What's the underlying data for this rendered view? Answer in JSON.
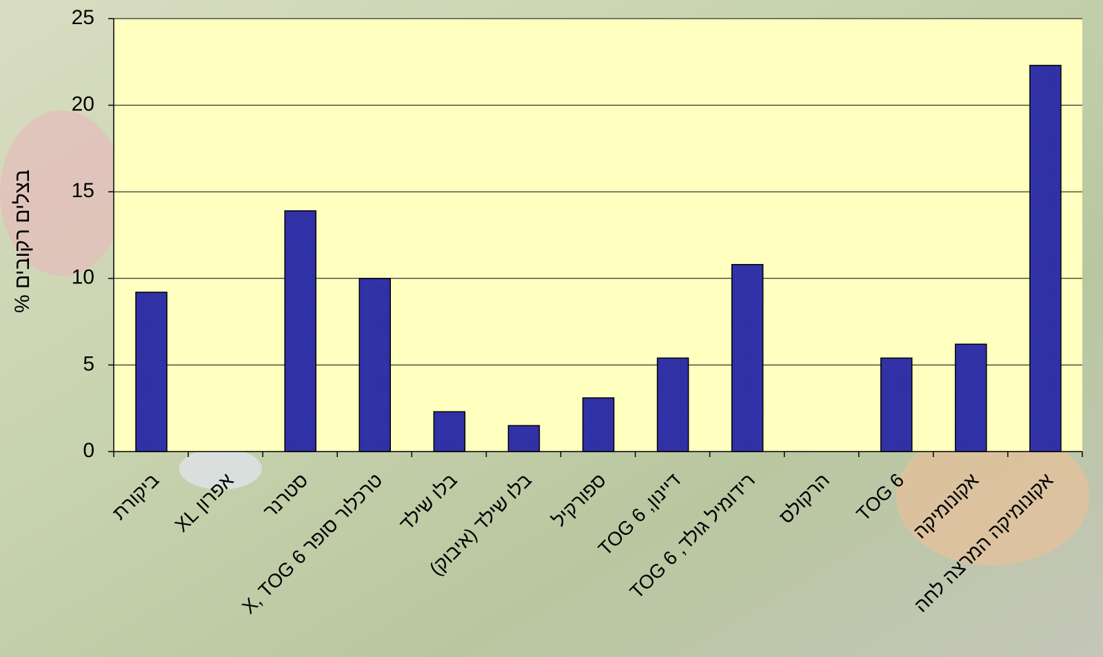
{
  "chart_data": {
    "type": "bar",
    "y_label": "בצלים רקובים %",
    "categories": [
      "ביקורת",
      "אפרון XL",
      "סטרנר",
      "טרכלור סופר X, TOG 6",
      "בלו שילד",
      "בלו שילד (איבוק)",
      "ספורקיל",
      "דיינון, TOG 6",
      "רידומיל גולד, TOG 6",
      "הרקולס",
      "TOG 6",
      "אקונומיקה",
      "אקונומיקה המרצה לחה"
    ],
    "values": [
      9.2,
      0,
      13.9,
      10.0,
      2.3,
      1.5,
      3.1,
      5.4,
      10.8,
      0,
      5.4,
      6.2,
      22.3
    ],
    "color": "#3333aa",
    "ylim": [
      0,
      25
    ],
    "yticks": [
      0,
      5,
      10,
      15,
      20,
      25
    ],
    "grid": true
  }
}
